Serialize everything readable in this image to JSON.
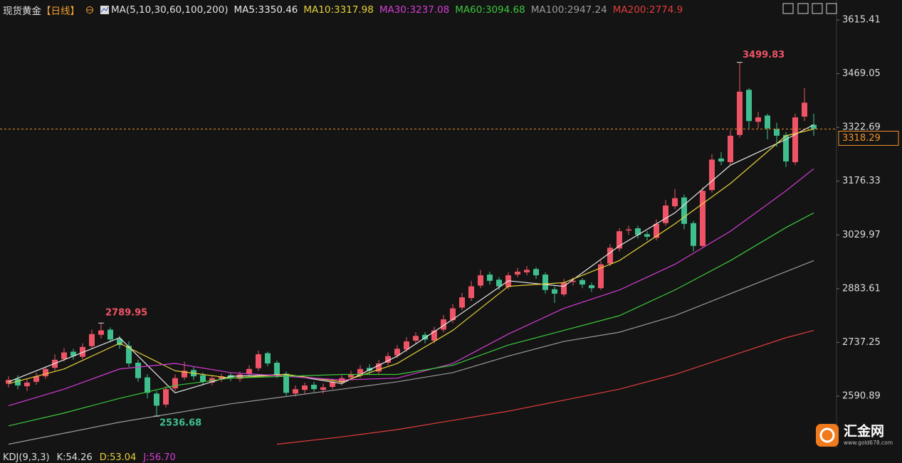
{
  "chart_data": {
    "type": "candlestick",
    "title": "现货黄金",
    "period": "【日线】",
    "indicator": "MA(5,10,30,60,100,200)",
    "up_color": "#ef5466",
    "down_color": "#3fbf8e",
    "ylim": [
      2449.6,
      3669.6
    ],
    "yticks": [
      2590.89,
      2737.25,
      2883.61,
      3029.97,
      3176.33,
      3322.69,
      3469.05,
      3615.41
    ],
    "open": [
      2625,
      2638,
      2618,
      2630,
      2645,
      2668,
      2692,
      2712,
      2698,
      2727,
      2758,
      2772,
      2747,
      2728,
      2682,
      2642,
      2598,
      2568,
      2612,
      2642,
      2662,
      2648,
      2628,
      2638,
      2648,
      2638,
      2652,
      2667,
      2708,
      2682,
      2652,
      2598,
      2608,
      2622,
      2608,
      2616,
      2628,
      2642,
      2648,
      2668,
      2658,
      2682,
      2702,
      2718,
      2742,
      2758,
      2742,
      2772,
      2798,
      2832,
      2858,
      2892,
      2922,
      2908,
      2888,
      2922,
      2928,
      2937,
      2922,
      2882,
      2868,
      2902,
      2907,
      2893,
      2885,
      2952,
      2993,
      3042,
      3048,
      3032,
      3022,
      3062,
      3108,
      3132,
      3062,
      3000,
      3152,
      3238,
      3228,
      3302,
      3425,
      3338,
      3355,
      3318,
      3302,
      3228,
      3352,
      3330
    ],
    "high": [
      2645,
      2648,
      2638,
      2655,
      2672,
      2705,
      2722,
      2720,
      2735,
      2772,
      2789.95,
      2778,
      2755,
      2740,
      2690,
      2650,
      2605,
      2618,
      2650,
      2685,
      2670,
      2655,
      2648,
      2652,
      2655,
      2658,
      2675,
      2715,
      2712,
      2688,
      2658,
      2620,
      2628,
      2630,
      2625,
      2638,
      2648,
      2660,
      2675,
      2678,
      2690,
      2710,
      2730,
      2752,
      2765,
      2765,
      2780,
      2812,
      2842,
      2872,
      2905,
      2935,
      2930,
      2915,
      2928,
      2940,
      2945,
      2942,
      2928,
      2890,
      2910,
      2915,
      2912,
      2900,
      2960,
      3005,
      3048,
      3055,
      3055,
      3040,
      3072,
      3125,
      3155,
      3140,
      3068,
      3160,
      3250,
      3255,
      3315,
      3499.83,
      3430,
      3365,
      3360,
      3335,
      3310,
      3360,
      3430,
      3360
    ],
    "low": [
      2615,
      2610,
      2605,
      2622,
      2638,
      2660,
      2685,
      2690,
      2692,
      2720,
      2748,
      2738,
      2720,
      2670,
      2630,
      2585,
      2536.68,
      2560,
      2605,
      2635,
      2635,
      2620,
      2620,
      2630,
      2632,
      2630,
      2645,
      2660,
      2672,
      2640,
      2592,
      2590,
      2598,
      2602,
      2598,
      2610,
      2620,
      2635,
      2640,
      2650,
      2652,
      2675,
      2695,
      2712,
      2735,
      2735,
      2735,
      2765,
      2790,
      2825,
      2850,
      2885,
      2895,
      2880,
      2882,
      2915,
      2920,
      2910,
      2870,
      2845,
      2862,
      2892,
      2885,
      2875,
      2880,
      2945,
      2985,
      3030,
      3020,
      3015,
      3015,
      3055,
      3100,
      3045,
      2985,
      2995,
      3145,
      3220,
      3220,
      3295,
      3320,
      3320,
      3290,
      3270,
      3215,
      3220,
      3340,
      3300
    ],
    "close": [
      2635,
      2620,
      2628,
      2645,
      2665,
      2690,
      2710,
      2700,
      2725,
      2760,
      2770,
      2745,
      2730,
      2680,
      2640,
      2600,
      2565,
      2610,
      2640,
      2660,
      2645,
      2630,
      2640,
      2645,
      2640,
      2650,
      2665,
      2705,
      2680,
      2650,
      2600,
      2610,
      2620,
      2610,
      2615,
      2630,
      2640,
      2650,
      2665,
      2660,
      2680,
      2700,
      2720,
      2740,
      2755,
      2745,
      2770,
      2800,
      2830,
      2860,
      2890,
      2920,
      2905,
      2890,
      2920,
      2930,
      2935,
      2920,
      2880,
      2870,
      2900,
      2905,
      2895,
      2885,
      2950,
      2995,
      3040,
      3045,
      3030,
      3025,
      3060,
      3110,
      3130,
      3060,
      3000,
      3150,
      3235,
      3230,
      3300,
      3420,
      3340,
      3350,
      3320,
      3300,
      3230,
      3350,
      3390,
      3318.29
    ],
    "series": [
      {
        "name": "MA5:3350.46",
        "color": "#e8e8e8",
        "x": [
          0,
          6,
          12,
          18,
          24,
          30,
          36,
          42,
          48,
          54,
          60,
          66,
          72,
          78,
          84,
          87
        ],
        "values": [
          2630,
          2690,
          2750,
          2600,
          2645,
          2650,
          2625,
          2700,
          2800,
          2905,
          2890,
          3000,
          3090,
          3220,
          3290,
          3330
        ]
      },
      {
        "name": "MA10:3317.98",
        "color": "#e6d23a",
        "x": [
          0,
          6,
          12,
          18,
          24,
          30,
          36,
          42,
          48,
          54,
          60,
          66,
          72,
          78,
          84,
          87
        ],
        "values": [
          2625,
          2665,
          2735,
          2660,
          2640,
          2650,
          2630,
          2680,
          2770,
          2890,
          2900,
          2960,
          3060,
          3170,
          3300,
          3318
        ]
      },
      {
        "name": "MA30:3237.08",
        "color": "#d63cd6",
        "x": [
          0,
          6,
          12,
          18,
          24,
          30,
          36,
          42,
          48,
          54,
          60,
          66,
          72,
          78,
          84,
          87
        ],
        "values": [
          2565,
          2610,
          2665,
          2680,
          2655,
          2645,
          2635,
          2640,
          2680,
          2760,
          2830,
          2880,
          2950,
          3040,
          3150,
          3210
        ]
      },
      {
        "name": "MA60:3094.68",
        "color": "#3cc83c",
        "x": [
          0,
          6,
          12,
          18,
          24,
          30,
          36,
          42,
          48,
          54,
          60,
          66,
          72,
          78,
          84,
          87
        ],
        "values": [
          2510,
          2545,
          2585,
          2620,
          2640,
          2645,
          2650,
          2650,
          2675,
          2730,
          2770,
          2810,
          2880,
          2960,
          3050,
          3090
        ]
      },
      {
        "name": "MA100:2947.24",
        "color": "#9a9a9a",
        "x": [
          0,
          6,
          12,
          18,
          24,
          30,
          36,
          42,
          48,
          54,
          60,
          66,
          72,
          78,
          84,
          87
        ],
        "values": [
          2460,
          2490,
          2520,
          2545,
          2570,
          2590,
          2610,
          2630,
          2655,
          2700,
          2740,
          2765,
          2810,
          2870,
          2930,
          2960
        ]
      },
      {
        "name": "MA200:2774.9",
        "color": "#e23c3c",
        "x": [
          29,
          36,
          42,
          48,
          54,
          60,
          66,
          72,
          78,
          84,
          87
        ],
        "values": [
          2460,
          2480,
          2500,
          2525,
          2550,
          2580,
          2610,
          2650,
          2700,
          2750,
          2770
        ]
      }
    ],
    "current_price": 3318.29,
    "current_price_color": "#f0902a",
    "footer": [
      "KDJ(9,3,3)",
      "K:54.26",
      "D:53.04",
      "J:56.70"
    ],
    "watermark": {
      "name": "汇金网",
      "url": "www.gold678.com"
    }
  }
}
